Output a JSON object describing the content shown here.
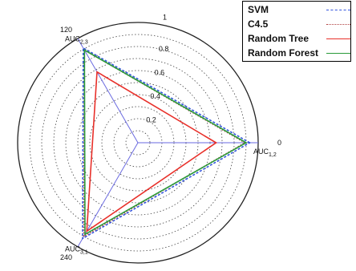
{
  "chart_data": {
    "type": "radar",
    "rmax": 1,
    "radial_ticks": [
      0.2,
      0.4,
      0.6,
      0.8,
      1
    ],
    "radial_tick_labels": [
      "0.2",
      "0.4",
      "0.6",
      "0.8",
      "1"
    ],
    "angle_labels": [
      "0",
      "120",
      "240"
    ],
    "axes": [
      {
        "label_main": "AUC",
        "label_sub": "1,2",
        "angle": 0
      },
      {
        "label_main": "AUC",
        "label_sub": "2,3",
        "angle": 120
      },
      {
        "label_main": "AUC",
        "label_sub": "3,1",
        "angle": 240
      }
    ],
    "series": [
      {
        "name": "SVM",
        "color": "#3355dd",
        "dash": "3,2",
        "values": [
          0.93,
          0.91,
          0.92
        ]
      },
      {
        "name": "C4.5",
        "color": "#b04040",
        "dash": "1.5,2",
        "values": [
          0.89,
          0.89,
          0.9
        ]
      },
      {
        "name": "Random Tree",
        "color": "#e8302a",
        "dash": "",
        "values": [
          0.65,
          0.68,
          0.85
        ]
      },
      {
        "name": "Random Forest",
        "color": "#2a9a3a",
        "dash": "",
        "values": [
          0.9,
          0.89,
          0.88
        ]
      }
    ],
    "grid": true,
    "legend_position": "top-right"
  }
}
